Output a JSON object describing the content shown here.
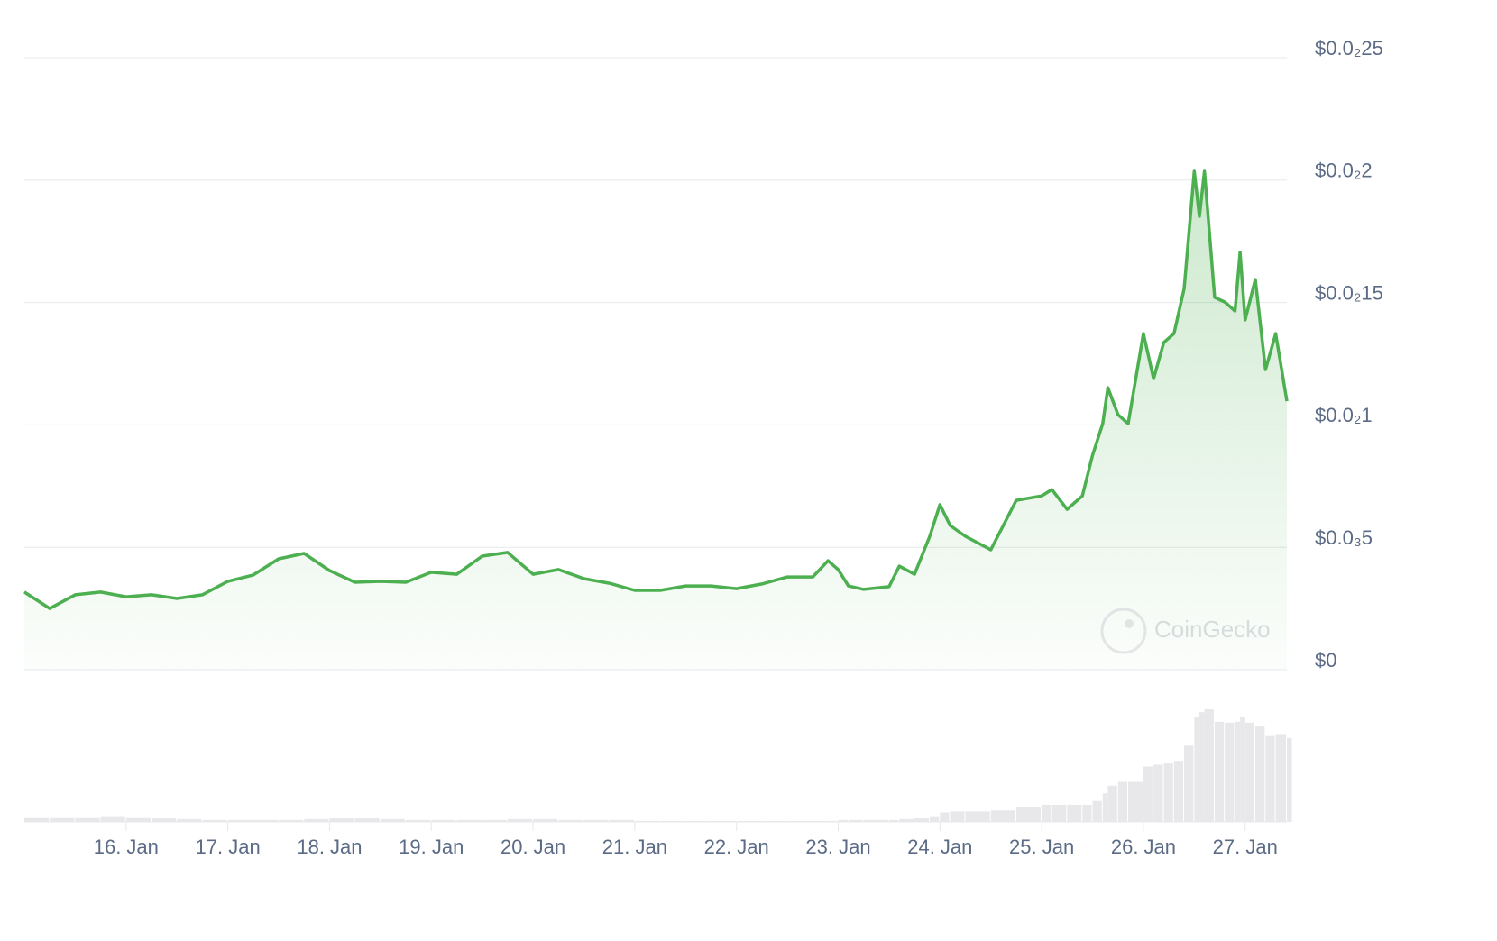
{
  "chart_data": {
    "type": "area",
    "watermark": "CoinGecko",
    "color": "#4caf50",
    "volume_color": "#e8e8ea",
    "grid": true,
    "x": [
      15.0,
      15.25,
      15.5,
      15.75,
      16.0,
      16.25,
      16.5,
      16.75,
      17.0,
      17.25,
      17.5,
      17.75,
      18.0,
      18.25,
      18.5,
      18.75,
      19.0,
      19.25,
      19.5,
      19.75,
      20.0,
      20.25,
      20.5,
      20.75,
      21.0,
      21.25,
      21.5,
      21.75,
      22.0,
      22.25,
      22.5,
      22.75,
      22.9,
      23.0,
      23.1,
      23.25,
      23.5,
      23.6,
      23.75,
      23.9,
      24.0,
      24.1,
      24.25,
      24.5,
      24.75,
      25.0,
      25.1,
      25.25,
      25.4,
      25.5,
      25.6,
      25.65,
      25.75,
      25.85,
      26.0,
      26.1,
      26.2,
      26.3,
      26.4,
      26.5,
      26.55,
      26.6,
      26.7,
      26.8,
      26.9,
      26.95,
      27.0,
      27.1,
      27.2,
      27.3,
      27.41
    ],
    "values": [
      0.000317,
      0.00025,
      0.000306,
      0.000317,
      0.000298,
      0.000306,
      0.000291,
      0.000306,
      0.000361,
      0.000387,
      0.000453,
      0.000475,
      0.000405,
      0.000357,
      0.000361,
      0.000357,
      0.000398,
      0.00039,
      0.000464,
      0.000479,
      0.00039,
      0.000409,
      0.000372,
      0.000353,
      0.000324,
      0.000324,
      0.000342,
      0.000342,
      0.000331,
      0.00035,
      0.000379,
      0.000379,
      0.000445,
      0.000409,
      0.000342,
      0.000328,
      0.000339,
      0.000423,
      0.00039,
      0.000545,
      0.000674,
      0.000589,
      0.000545,
      0.00049,
      0.000692,
      0.00071,
      0.000736,
      0.000655,
      0.00071,
      0.000876,
      0.001005,
      0.001152,
      0.001042,
      0.001005,
      0.001373,
      0.001189,
      0.001337,
      0.001373,
      0.001557,
      0.002036,
      0.001852,
      0.002036,
      0.001521,
      0.001502,
      0.001465,
      0.001705,
      0.001429,
      0.001594,
      0.001226,
      0.001373,
      0.001097
    ],
    "volume": [
      5,
      5,
      5,
      6,
      5,
      4,
      3,
      2,
      2,
      2,
      2,
      3,
      4,
      4,
      3,
      2,
      2,
      2,
      2,
      3,
      3,
      2,
      2,
      2,
      1,
      1,
      1,
      1,
      1,
      1,
      1,
      1,
      1,
      2,
      2,
      2,
      2,
      3,
      4,
      6,
      10,
      11,
      11,
      12,
      16,
      18,
      18,
      18,
      18,
      22,
      30,
      38,
      42,
      42,
      58,
      60,
      62,
      64,
      80,
      110,
      115,
      118,
      105,
      104,
      105,
      110,
      104,
      100,
      90,
      92,
      88
    ],
    "xlim": [
      15.0,
      27.41
    ],
    "xticks": [
      {
        "value": 16,
        "label": "16. Jan"
      },
      {
        "value": 17,
        "label": "17. Jan"
      },
      {
        "value": 18,
        "label": "18. Jan"
      },
      {
        "value": 19,
        "label": "19. Jan"
      },
      {
        "value": 20,
        "label": "20. Jan"
      },
      {
        "value": 21,
        "label": "21. Jan"
      },
      {
        "value": 22,
        "label": "22. Jan"
      },
      {
        "value": 23,
        "label": "23. Jan"
      },
      {
        "value": 24,
        "label": "24. Jan"
      },
      {
        "value": 25,
        "label": "25. Jan"
      },
      {
        "value": 26,
        "label": "26. Jan"
      },
      {
        "value": 27,
        "label": "27. Jan"
      }
    ],
    "ylim": [
      0,
      0.0025
    ],
    "yticks": [
      {
        "value": 0,
        "label": "$0"
      },
      {
        "value": 0.0005,
        "label": "$0.0₃5"
      },
      {
        "value": 0.001,
        "label": "$0.0₂1"
      },
      {
        "value": 0.0015,
        "label": "$0.0₂15"
      },
      {
        "value": 0.002,
        "label": "$0.0₂2"
      },
      {
        "value": 0.0025,
        "label": "$0.0₂25"
      }
    ]
  }
}
